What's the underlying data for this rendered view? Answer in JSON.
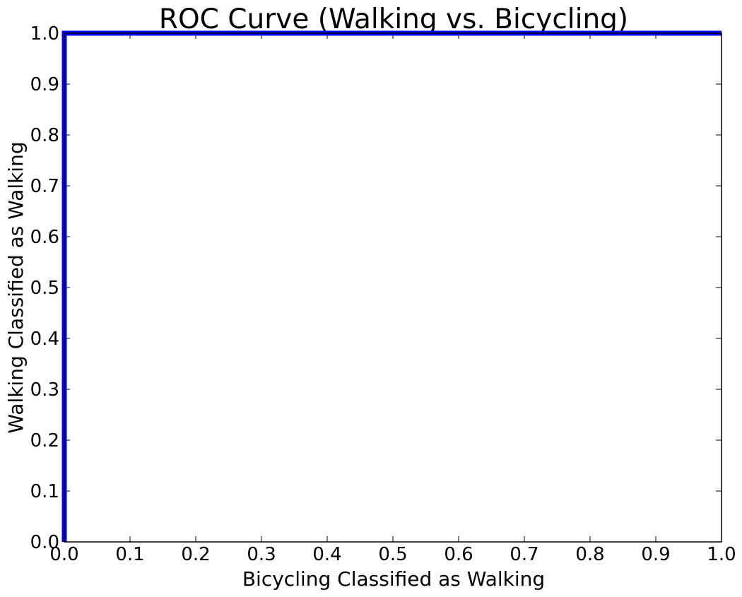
{
  "chart_data": {
    "type": "line",
    "title": "ROC Curve (Walking vs. Bicycling)",
    "xlabel": "Bicycling Classified as Walking",
    "ylabel": "Walking Classified as Walking",
    "xlim": [
      0.0,
      1.0
    ],
    "ylim": [
      0.0,
      1.0
    ],
    "x_ticks": [
      "0.0",
      "0.1",
      "0.2",
      "0.3",
      "0.4",
      "0.5",
      "0.6",
      "0.7",
      "0.8",
      "0.9",
      "1.0"
    ],
    "y_ticks": [
      "0.0",
      "0.1",
      "0.2",
      "0.3",
      "0.4",
      "0.5",
      "0.6",
      "0.7",
      "0.8",
      "0.9",
      "1.0"
    ],
    "grid": false,
    "series": [
      {
        "x": [
          0.0,
          0.0,
          1.0
        ],
        "y": [
          0.0,
          1.0,
          1.0
        ],
        "color": "#0000ff"
      }
    ]
  }
}
